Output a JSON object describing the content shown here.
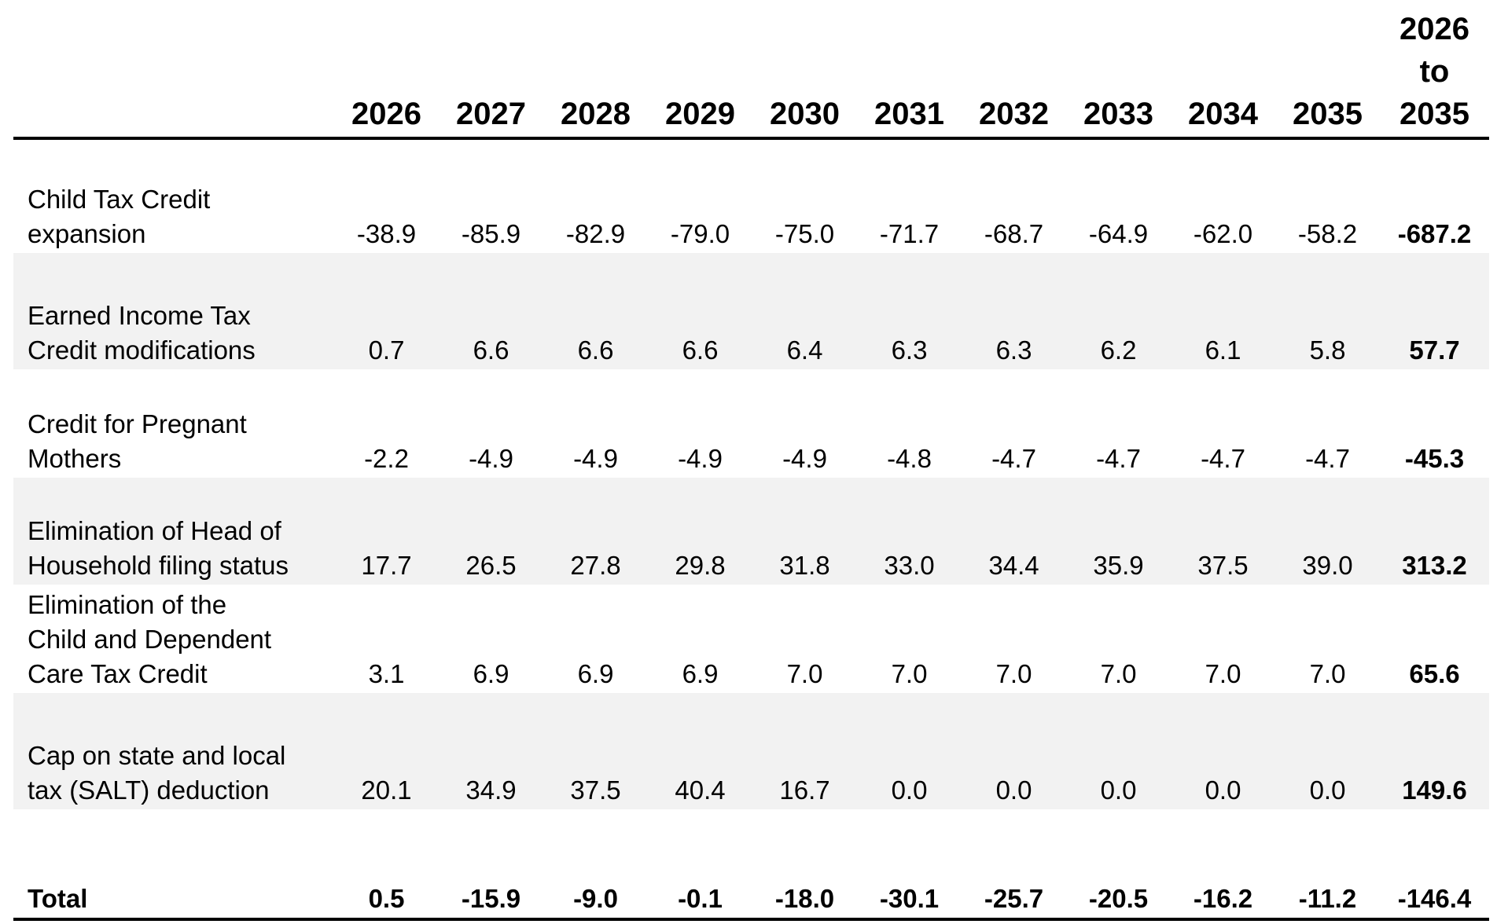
{
  "table": {
    "header": {
      "label": "",
      "years": [
        "2026",
        "2027",
        "2028",
        "2029",
        "2030",
        "2031",
        "2032",
        "2033",
        "2034",
        "2035"
      ],
      "total_line1": "2026",
      "total_line2": "to",
      "total_line3": "2035"
    },
    "rows": [
      {
        "label_lines": [
          "Child Tax Credit",
          "expansion"
        ],
        "values": [
          "-38.9",
          "-85.9",
          "-82.9",
          "-79.0",
          "-75.0",
          "-71.7",
          "-68.7",
          "-64.9",
          "-62.0",
          "-58.2"
        ],
        "total": "-687.2"
      },
      {
        "label_lines": [
          "Earned Income Tax",
          "Credit modifications"
        ],
        "values": [
          "0.7",
          "6.6",
          "6.6",
          "6.6",
          "6.4",
          "6.3",
          "6.3",
          "6.2",
          "6.1",
          "5.8"
        ],
        "total": "57.7"
      },
      {
        "label_lines": [
          "Credit for Pregnant",
          "Mothers"
        ],
        "values": [
          "-2.2",
          "-4.9",
          "-4.9",
          "-4.9",
          "-4.9",
          "-4.8",
          "-4.7",
          "-4.7",
          "-4.7",
          "-4.7"
        ],
        "total": "-45.3"
      },
      {
        "label_lines": [
          "Elimination of Head of",
          "Household filing status"
        ],
        "values": [
          "17.7",
          "26.5",
          "27.8",
          "29.8",
          "31.8",
          "33.0",
          "34.4",
          "35.9",
          "37.5",
          "39.0"
        ],
        "total": "313.2"
      },
      {
        "label_lines": [
          "Elimination of the",
          "Child and Dependent",
          "Care Tax Credit"
        ],
        "values": [
          "3.1",
          "6.9",
          "6.9",
          "6.9",
          "7.0",
          "7.0",
          "7.0",
          "7.0",
          "7.0",
          "7.0"
        ],
        "total": "65.6"
      },
      {
        "label_lines": [
          "Cap on state and local",
          "tax (SALT) deduction"
        ],
        "values": [
          "20.1",
          "34.9",
          "37.5",
          "40.4",
          "16.7",
          "0.0",
          "0.0",
          "0.0",
          "0.0",
          "0.0"
        ],
        "total": "149.6"
      }
    ],
    "total_row": {
      "label": "Total",
      "values": [
        "0.5",
        "-15.9",
        "-9.0",
        "-0.1",
        "-18.0",
        "-30.1",
        "-25.7",
        "-20.5",
        "-16.2",
        "-11.2"
      ],
      "total": "-146.4"
    },
    "colors": {
      "shade": "#f2f2f2",
      "rule": "#000000"
    }
  }
}
